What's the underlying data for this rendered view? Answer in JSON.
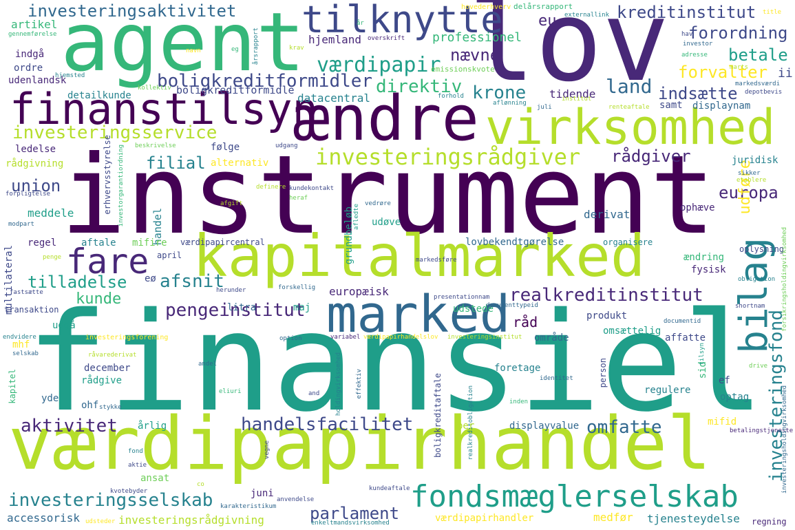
{
  "words": {
    "instrument": "instrument",
    "finansiel": "finansiel",
    "vaerdipapirhandel": "værdipapirhandel",
    "lov": "lov",
    "agent": "agent",
    "kapitalmarked": "kapitalmarked",
    "marked": "marked",
    "aendre": "ændre",
    "virksomhed": "virksomhed",
    "finanstilsyn": "finanstilsyn",
    "tilknytte": "tilknytte",
    "fondsmaeglerselskab": "fondsmæglerselskab",
    "bilag": "bilag",
    "fare": "fare",
    "investeringsraadgiver": "investeringsrådgiver",
    "investeringsservice": "investeringsservice",
    "investeringsaktivitet": "investeringsaktivitet",
    "kreditinstitut": "kreditinstitut",
    "eu": "eu",
    "forordning": "forordning",
    "vaerdipapir": "værdipapir",
    "naevne": "nævne",
    "boligkreditformidler": "boligkreditformidler",
    "betale": "betale",
    "forvalter": "forvalter",
    "ii": "ii",
    "direktiv": "direktiv",
    "krone": "krone",
    "land": "land",
    "indsaette": "indsætte",
    "investeringsfond": "investeringsfond",
    "realkreditinstitut": "realkreditinstitut",
    "pengeinstitut": "pengeinstitut",
    "handelsfacilitet": "handelsfacilitet",
    "omfatte": "omfatte",
    "investeringsselskab": "investeringsselskab",
    "parlament": "parlament",
    "aktivitet": "aktivitet",
    "afsnit": "afsnit",
    "tilladelse": "tilladelse",
    "kunde": "kunde",
    "filial": "filial",
    "union": "union",
    "europa": "europa",
    "udfoere": "udføre",
    "raadgiver": "rådgiver",
    "datacentral": "datacentral",
    "professionel": "professionel",
    "hjemland": "hjemland",
    "artikel": "artikel",
    "indgaa": "indgå",
    "ordre": "ordre",
    "udenlandsk": "udenlandsk",
    "detailkunde": "detailkunde",
    "boligkreditformidle": "boligkreditformidle",
    "tidende": "tidende",
    "samt": "samt",
    "displaynam": "displaynam",
    "ledelse": "ledelse",
    "foelge": "følge",
    "raadgivning": "rådgivning",
    "alternativ": "alternativ",
    "juridisk": "juridisk",
    "meddele": "meddele",
    "handel": "handel",
    "udoeve": "udøve",
    "derivat": "derivat",
    "ophaeve": "ophæve",
    "regel": "regel",
    "aftale": "aftale",
    "mifire": "mifire",
    "vaerdipapircentral": "værdipapircentral",
    "lovbekendtgoerelse": "lovbekendtgørelse",
    "organisere": "organisere",
    "oplysning": "oplysning",
    "multilateral": "multilateral",
    "april": "april",
    "aendring": "ændring",
    "fysisk": "fysisk",
    "eoe": "eø",
    "europaeisk": "europæisk",
    "litra": "litra",
    "maj": "maj",
    "udstede": "udstede",
    "raad": "råd",
    "produkt": "produkt",
    "udgaa": "udgå",
    "omsaettelig": "omsættelig",
    "omraade": "område",
    "affatte": "affatte",
    "transaktion": "transaktion",
    "december": "december",
    "foretage": "foretage",
    "person": "person",
    "sid": "sid",
    "ef": "ef",
    "optag": "optag",
    "raadgive": "rådgive",
    "regulere": "regulere",
    "yde": "yde",
    "ohf": "ohf",
    "aarlig": "årlig",
    "displayvalue": "displayvalue",
    "mifid": "mifid",
    "juni": "juni",
    "ansat": "ansat",
    "accessorisk": "accessorisk",
    "investeringsraadgivning": "investeringsrådgivning",
    "vaerdipapirhandler": "værdipapirhandler",
    "medfoer": "medfør",
    "tjenesteydelse": "tjenesteydelse",
    "regning": "regning",
    "grundbeloeb": "grundbeløb",
    "boligkreditaftale": "boligkreditaftale",
    "kapitel": "kapitel",
    "mhf": "mhf",
    "hovederhverv": "hovederhverv",
    "delaarsrapport": "delårsrapport",
    "externallink": "externallink",
    "title": "title",
    "gennemfoerelse": "gennemførelse",
    "aar": "år",
    "overskrift": "overskrift",
    "navn": "navn",
    "eg": "eg",
    "krav": "krav",
    "aarsrapport": "årsrapport",
    "hav": "hav",
    "investor": "investor",
    "adresse": "adresse",
    "emissionskvote": "emissionskvote",
    "hjemsted": "hjemsted",
    "kollektiv": "kollektiv",
    "forhold": "forhold",
    "marts": "marts",
    "markedsvaerdi": "markedsværdi",
    "depotbevis": "depotbevis",
    "institut": "institut",
    "juli": "juli",
    "aflanning": "aflønning",
    "renteaftale": "renteaftale",
    "beskrivelse": "beskrivelse",
    "udgang": "udgang",
    "erhvervsstyrelse": "erhvervsstyrelse",
    "investorgarantiordning": "investorgarantiordning",
    "forpligtelse": "forpligtelse",
    "definere": "definere",
    "kundekontakt": "kundekontakt",
    "heraf": "heraf",
    "afgift": "afgift",
    "vedroere": "vedrøre",
    "afledte": "afledte",
    "sikker": "sikker",
    "etablere": "etablere",
    "modpart": "modpart",
    "penge": "penge",
    "markedsfoere": "markedsføre",
    "obligation": "obligation",
    "fastsaette": "fastsætte",
    "herunder": "herunder",
    "forskellig": "forskellig",
    "presentationnam": "presentationnam",
    "documenttypeid": "documenttypeid",
    "shortnam": "shortnam",
    "documentid": "documentid",
    "endvidere": "endvidere",
    "investeringsforening": "investeringsforening",
    "option": "option",
    "variabel": "variabel",
    "vaerdipapirhandelslov": "værdipapirhandelslov",
    "investeringsinstitut": "investeringsinstitut",
    "forsikringsholdingvirksomhed": "forsikringsholdingvirksomhed",
    "selskab": "selskab",
    "raavarederivat": "råvarederivat",
    "andel": "andel",
    "holdingvirksomhed": "holdingvirksomhed",
    "realkreditobligation": "realkreditobligation",
    "identitet": "identitet",
    "tilsyn": "tilsyn",
    "drive": "drive",
    "eliuri": "eliuri",
    "and": "and",
    "effektiv": "effektiv",
    "stykke": "stykke",
    "inden": "inden",
    "betalingstjeneste": "betalingstjeneste",
    "per": "per",
    "investeringsholdingvirksomhed": "investeringsholdingvirksomhed",
    "fond": "fond",
    "vegne": "vegne",
    "aktie": "aktie",
    "kvotebyder": "kvotebyder",
    "co": "co",
    "anvendelse": "anvendelse",
    "kundeaftale": "kundeaftale",
    "karakteristikum": "karakteristikum",
    "udsteder": "udsteder",
    "enkeltmandsvirksomhed": "enkeltmandsvirksomhed"
  },
  "palette": [
    "#440154",
    "#482878",
    "#3e4989",
    "#31688e",
    "#26828e",
    "#1f9e89",
    "#35b779",
    "#6ece58",
    "#b5de2b",
    "#fde725"
  ]
}
